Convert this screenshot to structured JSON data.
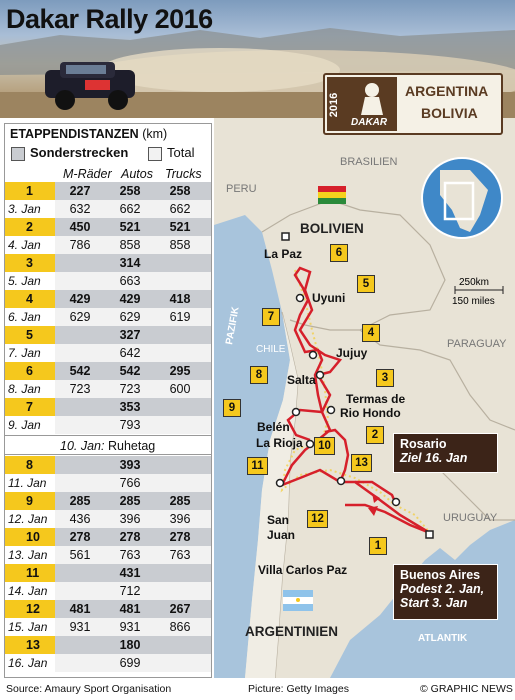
{
  "title": "Dakar Rally 2016",
  "logo": {
    "year": "2016",
    "brand": "DAKAR",
    "countries": [
      "ARGENTINA",
      "BOLIVIA"
    ]
  },
  "table": {
    "title": "ETAPPENDISTANZEN",
    "unit": "(km)",
    "legend": {
      "special": "Sonderstrecken",
      "total": "Total"
    },
    "columns": [
      "M-Räder",
      "Autos",
      "Trucks"
    ],
    "stages": [
      {
        "n": "1",
        "date": "3. Jan",
        "special": [
          "227",
          "258",
          "258"
        ],
        "total": [
          "632",
          "662",
          "662"
        ]
      },
      {
        "n": "2",
        "date": "4. Jan",
        "special": [
          "450",
          "521",
          "521"
        ],
        "total": [
          "786",
          "858",
          "858"
        ]
      },
      {
        "n": "3",
        "date": "5. Jan",
        "special": [
          "314"
        ],
        "total": [
          "663"
        ]
      },
      {
        "n": "4",
        "date": "6. Jan",
        "special": [
          "429",
          "429",
          "418"
        ],
        "total": [
          "629",
          "629",
          "619"
        ]
      },
      {
        "n": "5",
        "date": "7. Jan",
        "special": [
          "327"
        ],
        "total": [
          "642"
        ]
      },
      {
        "n": "6",
        "date": "8. Jan",
        "special": [
          "542",
          "542",
          "295"
        ],
        "total": [
          "723",
          "723",
          "600"
        ]
      },
      {
        "n": "7",
        "date": "9. Jan",
        "special": [
          "353"
        ],
        "total": [
          "793"
        ]
      },
      {
        "n": "8",
        "date": "11. Jan",
        "special": [
          "393"
        ],
        "total": [
          "766"
        ]
      },
      {
        "n": "9",
        "date": "12. Jan",
        "special": [
          "285",
          "285",
          "285"
        ],
        "total": [
          "436",
          "396",
          "396"
        ]
      },
      {
        "n": "10",
        "date": "13. Jan",
        "special": [
          "278",
          "278",
          "278"
        ],
        "total": [
          "561",
          "763",
          "763"
        ]
      },
      {
        "n": "11",
        "date": "14. Jan",
        "special": [
          "431"
        ],
        "total": [
          "712"
        ]
      },
      {
        "n": "12",
        "date": "15. Jan",
        "special": [
          "481",
          "481",
          "267"
        ],
        "total": [
          "931",
          "931",
          "866"
        ]
      },
      {
        "n": "13",
        "date": "16. Jan",
        "special": [
          "180"
        ],
        "total": [
          "699"
        ]
      }
    ],
    "rest_day": {
      "date": "10. Jan:",
      "label": "Ruhetag"
    }
  },
  "map": {
    "countries": {
      "brasil": "BRASILIEN",
      "peru": "PERU",
      "bolivia": "BOLIVIEN",
      "chile": "CHILE",
      "paraguay": "PARAGUAY",
      "uruguay": "URUGUAY",
      "argentina": "ARGENTINIEN"
    },
    "oceans": {
      "pacific": "PAZIFIK",
      "atlantic": "ATLANTIK"
    },
    "cities": {
      "la_paz": "La Paz",
      "uyuni": "Uyuni",
      "jujuy": "Jujuy",
      "salta": "Salta",
      "termas1": "Termas de",
      "termas2": "Rio Hondo",
      "belen": "Belén",
      "la_rioja": "La Rioja",
      "san_juan1": "San",
      "san_juan2": "Juan",
      "villa": "Villa Carlos Paz"
    },
    "rosario": {
      "name": "Rosario",
      "note": "Ziel 16. Jan"
    },
    "buenos_aires": {
      "name": "Buenos Aires",
      "note1": "Podest 2. Jan,",
      "note2": "Start 3. Jan"
    },
    "scale": {
      "km": "250km",
      "miles": "150 miles"
    },
    "stage_markers": [
      "1",
      "2",
      "3",
      "4",
      "5",
      "6",
      "7",
      "8",
      "9",
      "10",
      "11",
      "12",
      "13"
    ],
    "colors": {
      "route": "#d6202b",
      "marker": "#f5c81d",
      "land": "#e8e3d6",
      "sea": "#a8c4dc",
      "callout": "#3c2418"
    }
  },
  "footer": {
    "source": "Source: Amaury Sport Organisation",
    "picture": "Picture: Getty Images",
    "credit": "© GRAPHIC NEWS"
  }
}
